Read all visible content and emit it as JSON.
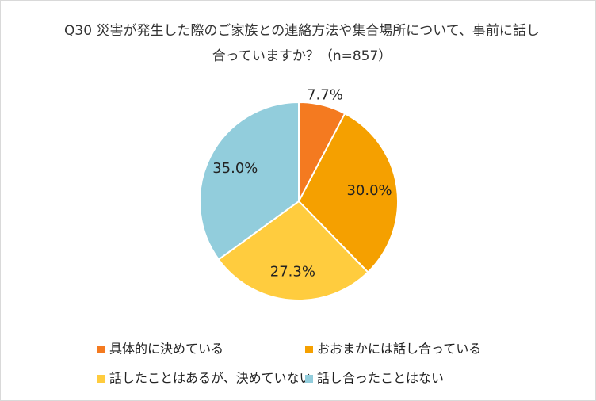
{
  "chart_data": {
    "type": "pie",
    "title": "Q30 災害が発生した際のご家族との連絡方法や集合場所について、事前に話し合っていますか？（n=857）",
    "categories": [
      "具体的に決めている",
      "おおまかには話し合っている",
      "話したことはあるが、決めていない",
      "話し合ったことはない"
    ],
    "values": [
      7.7,
      30.0,
      27.3,
      35.0
    ],
    "value_labels": [
      "7.7%",
      "30.0%",
      "27.3%",
      "35.0%"
    ],
    "colors": [
      "#f47a20",
      "#f5a000",
      "#ffcc3e",
      "#92cddc"
    ]
  }
}
